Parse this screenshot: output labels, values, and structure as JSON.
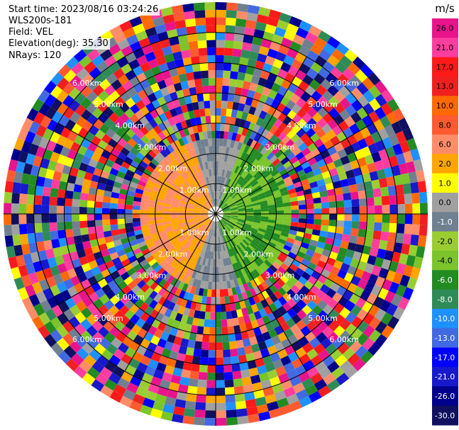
{
  "header": {
    "start_time": "Start time: 2023/08/16 03:24:26",
    "instrument": "WLS200s-181",
    "field": "Field: VEL",
    "elevation": "Elevation(deg): 35.30",
    "nrays": "NRays: 120"
  },
  "chart_data": {
    "type": "heatmap",
    "projection": "polar-ppi",
    "units": "m/s",
    "nrays": 120,
    "max_range_km": 7.0,
    "range_rings_km": [
      1.0,
      2.0,
      3.0,
      4.0,
      5.0,
      6.0
    ],
    "ring_labels": [
      "1.00km",
      "2.00km",
      "3.00km",
      "4.00km",
      "5.00km",
      "6.00km"
    ],
    "colorbar_ticks": [
      26.0,
      21.0,
      17.0,
      13.0,
      10.0,
      8.0,
      6.0,
      2.0,
      1.0,
      0.0,
      -1.0,
      -2.0,
      -4.0,
      -6.0,
      -8.0,
      -10.0,
      -13.0,
      -17.0,
      -21.0,
      -26.0,
      -30.0
    ],
    "colorbar_tick_labels": [
      "26.0",
      "21.0",
      "17.0",
      "13.0",
      "10.0",
      "8.0",
      "6.0",
      "2.0",
      "1.0",
      "0.0",
      "-1.0",
      "-2.0",
      "-4.0",
      "-6.0",
      "-8.0",
      "-10.0",
      "-13.0",
      "-17.0",
      "-21.0",
      "-26.0",
      "-30.0"
    ],
    "colorbar_colors": [
      "#e8148c",
      "#ff3d9e",
      "#ff1a1a",
      "#f02020",
      "#ff6a00",
      "#ff5a30",
      "#ff8c69",
      "#ffa500",
      "#ffff00",
      "#a0a0a0",
      "#708090",
      "#9acd32",
      "#7bc42b",
      "#228b22",
      "#2e8b57",
      "#1e90ff",
      "#4169e1",
      "#0000ff",
      "#1818cc",
      "#00008b",
      "#101060"
    ],
    "colorbar_label": "m/s",
    "near_field_pattern": {
      "description": "clean velocity pattern within ~2.5 km",
      "west_values": [
        6.0,
        2.0
      ],
      "east_values": [
        -4.0,
        -6.0
      ],
      "north_south_values": [
        0.0,
        -1.0
      ]
    },
    "far_field_pattern": "noisy, all colors beyond ~3 km"
  }
}
